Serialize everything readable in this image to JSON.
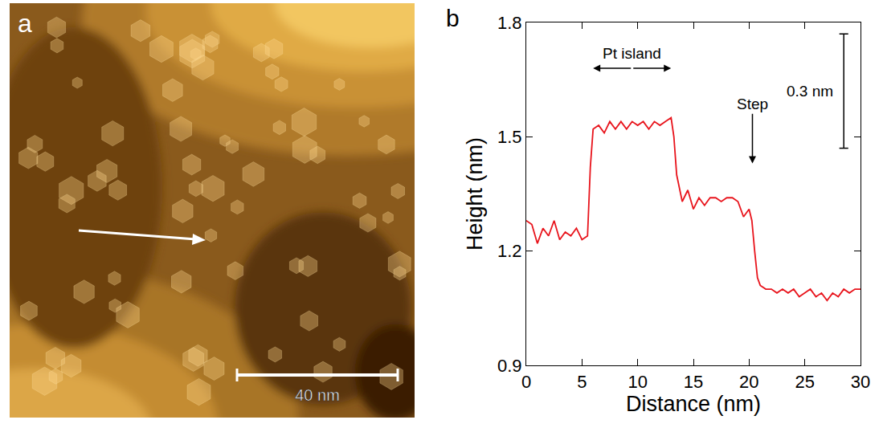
{
  "image": {
    "label": "a",
    "scale_bar_text": "40 nm"
  },
  "chart_data": {
    "label": "b",
    "type": "line",
    "x_label": "Distance (nm)",
    "y_label": "Height (nm)",
    "xlim": [
      0,
      30
    ],
    "xticks": [
      0,
      5,
      10,
      15,
      20,
      25,
      30
    ],
    "ylim": [
      0.9,
      1.8
    ],
    "yticks": [
      0.9,
      1.2,
      1.5,
      1.8
    ],
    "grid": false,
    "color": "#e8141c",
    "x": [
      0,
      0.5,
      1,
      1.5,
      2,
      2.5,
      3,
      3.5,
      4,
      4.5,
      5,
      5.5,
      5.75,
      6,
      6.5,
      7,
      7.5,
      8,
      8.5,
      9,
      9.5,
      10,
      10.5,
      11,
      11.5,
      12,
      12.5,
      13,
      13.25,
      13.5,
      14,
      14.5,
      15,
      15.5,
      16,
      16.5,
      17,
      17.5,
      18,
      18.5,
      19,
      19.5,
      20,
      20.25,
      20.5,
      20.75,
      21,
      21.5,
      22,
      22.5,
      23,
      23.5,
      24,
      24.5,
      25,
      25.5,
      26,
      26.5,
      27,
      27.5,
      28,
      28.5,
      29,
      29.5,
      30
    ],
    "values": [
      1.28,
      1.27,
      1.22,
      1.26,
      1.24,
      1.28,
      1.23,
      1.25,
      1.24,
      1.26,
      1.23,
      1.24,
      1.42,
      1.52,
      1.53,
      1.51,
      1.54,
      1.52,
      1.54,
      1.52,
      1.54,
      1.53,
      1.54,
      1.52,
      1.54,
      1.53,
      1.54,
      1.55,
      1.5,
      1.4,
      1.33,
      1.36,
      1.31,
      1.34,
      1.32,
      1.34,
      1.34,
      1.33,
      1.34,
      1.34,
      1.33,
      1.29,
      1.31,
      1.28,
      1.2,
      1.13,
      1.11,
      1.1,
      1.1,
      1.09,
      1.1,
      1.09,
      1.1,
      1.08,
      1.09,
      1.1,
      1.08,
      1.09,
      1.07,
      1.09,
      1.08,
      1.1,
      1.09,
      1.1,
      1.1
    ],
    "annotations": [
      {
        "text": "Pt island",
        "x0": 6,
        "x1": 13,
        "y": 1.68
      },
      {
        "text": "Step",
        "x": 20.3,
        "y": 1.43,
        "text_y": 1.56
      }
    ],
    "scale_bar": {
      "text": "0.3 nm",
      "x": 28.5,
      "y0": 1.47,
      "length": 0.3
    }
  }
}
